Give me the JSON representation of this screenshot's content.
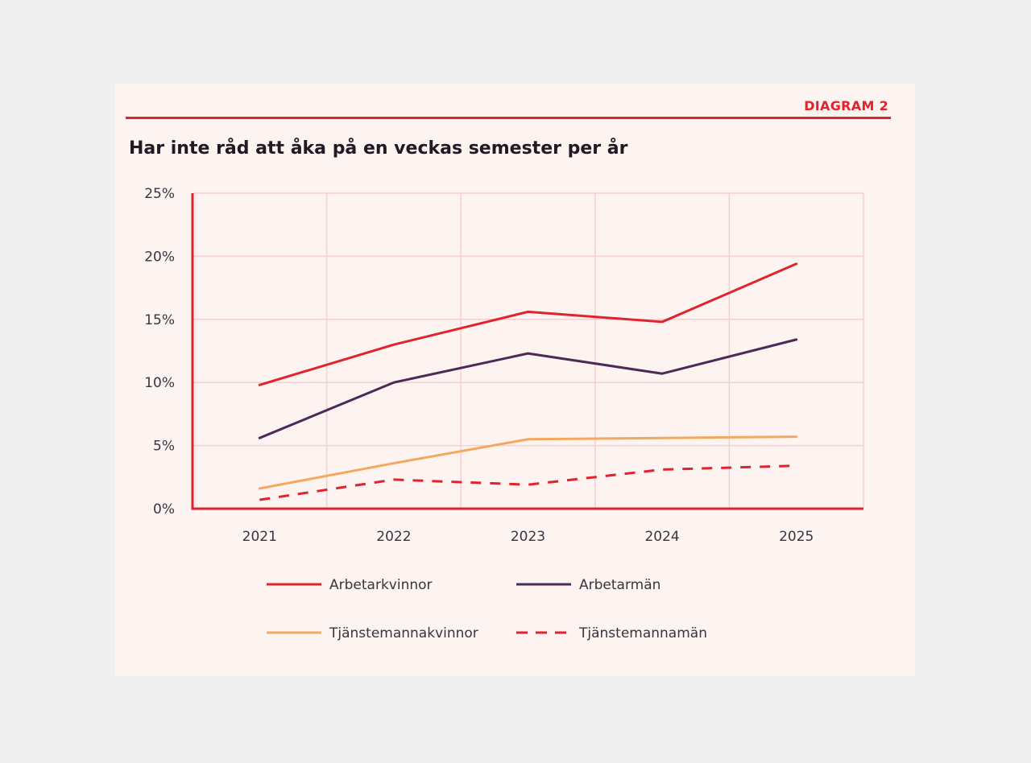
{
  "header": {
    "tag": "DIAGRAM 2",
    "title": "Har inte råd att åka på en veckas semester per år"
  },
  "colors": {
    "accent": "#e0232d",
    "grid": "#f6cfd1",
    "arbetarkvinnor": "#e0232d",
    "arbetarman": "#4b2a57",
    "tjanstemannakvinnor": "#f5a85d",
    "tjanstemannaman": "#e0232d"
  },
  "chart_data": {
    "type": "line",
    "title": "Har inte råd att åka på en veckas semester per år",
    "xlabel": "",
    "ylabel": "",
    "categories": [
      "2021",
      "2022",
      "2023",
      "2024",
      "2025"
    ],
    "ylim": [
      0,
      25
    ],
    "yticks": [
      0,
      5,
      10,
      15,
      20,
      25
    ],
    "ytick_labels": [
      "0%",
      "5%",
      "10%",
      "15%",
      "20%",
      "25%"
    ],
    "grid": true,
    "legend_position": "bottom",
    "series": [
      {
        "name": "Arbetarkvinnor",
        "values": [
          9.8,
          13.0,
          15.6,
          14.8,
          19.4
        ],
        "color": "#e0232d",
        "dashed": false
      },
      {
        "name": "Arbetarmän",
        "values": [
          5.6,
          10.0,
          12.3,
          10.7,
          13.4
        ],
        "color": "#4b2a57",
        "dashed": false
      },
      {
        "name": "Tjänstemannakvinnor",
        "values": [
          1.6,
          3.6,
          5.5,
          5.6,
          5.7
        ],
        "color": "#f5a85d",
        "dashed": false
      },
      {
        "name": "Tjänstemannamän",
        "values": [
          0.7,
          2.3,
          1.9,
          3.1,
          3.4
        ],
        "color": "#e0232d",
        "dashed": true
      }
    ]
  }
}
